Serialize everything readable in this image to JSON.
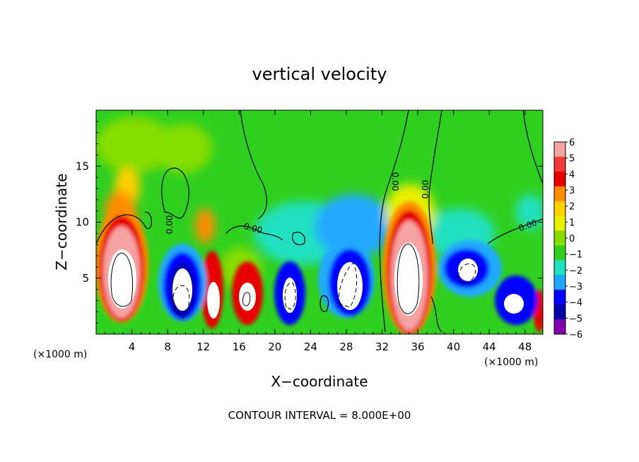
{
  "chart_data": {
    "type": "heatmap",
    "title": "vertical velocity",
    "xlabel": "X−coordinate",
    "ylabel": "Z−coordinate",
    "x_unit_label": "(×1000 m)",
    "z_unit_label": "(×1000 m)",
    "footer": "CONTOUR INTERVAL = 8.000E+00",
    "xlim": [
      0,
      50
    ],
    "ylim": [
      0,
      20
    ],
    "x_ticks": [
      4,
      8,
      12,
      16,
      20,
      24,
      28,
      32,
      36,
      40,
      44,
      48
    ],
    "y_ticks": [
      5,
      10,
      15
    ],
    "x_tick_labels": [
      "4",
      "8",
      "12",
      "16",
      "20",
      "24",
      "28",
      "32",
      "36",
      "40",
      "44",
      "48"
    ],
    "y_tick_labels": [
      "5",
      "10",
      "15"
    ],
    "colorbar_labels": [
      "6",
      "5",
      "4",
      "3",
      "2",
      "1",
      "0",
      "−1",
      "−2",
      "−3",
      "−4",
      "−5",
      "−6"
    ],
    "colorbar_colors": [
      "#f7a3a3",
      "#f23a3a",
      "#e60000",
      "#ff8c00",
      "#ffd000",
      "#e8f000",
      "#86dd00",
      "#30d020",
      "#20e0c0",
      "#20a8ff",
      "#0000ff",
      "#0000a8",
      "#8000b0"
    ],
    "contour_labels": [
      "0.00",
      "0.00",
      "0.00",
      "0.00",
      "0.00"
    ],
    "updrafts": [
      {
        "x": 3.0,
        "z": 4.8,
        "w": 16
      },
      {
        "x": 13.2,
        "z": 3.0,
        "w": 10
      },
      {
        "x": 16.2,
        "z": 3.2,
        "w": 8
      },
      {
        "x": 34.0,
        "z": 5.0,
        "w": 17
      },
      {
        "x": 49.5,
        "z": 2.5,
        "w": 5
      }
    ],
    "downdrafts": [
      {
        "x": 9.5,
        "z": 4.2,
        "w": -12
      },
      {
        "x": 21.0,
        "z": 4.0,
        "w": -10
      },
      {
        "x": 28.0,
        "z": 5.0,
        "w": -12
      },
      {
        "x": 41.5,
        "z": 6.2,
        "w": -9
      },
      {
        "x": 45.5,
        "z": 3.2,
        "w": -8
      }
    ]
  }
}
